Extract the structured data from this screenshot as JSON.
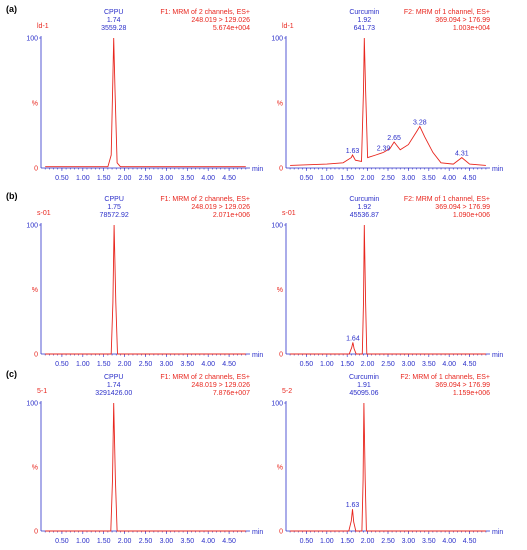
{
  "colors": {
    "trace": "#e8261e",
    "axis": "#2b2fc9",
    "header": "#e8261e",
    "panel_label": "#000000"
  },
  "axis_common": {
    "x_ticks": [
      "0.50",
      "1.00",
      "1.50",
      "2.00",
      "2.50",
      "3.00",
      "3.50",
      "4.00",
      "4.50"
    ],
    "x_unit": "min",
    "y_ticks": [
      "0",
      "%",
      "100"
    ]
  },
  "chart_data": [
    {
      "type": "line",
      "panel": "(a)",
      "sample": "ld-1",
      "compound": "CPPU",
      "rt": "1.74",
      "area": "3559.28",
      "function": "F1: MRM of 2 channels, ES+",
      "transition": "248.019 > 129.026",
      "intensity": "5.674e+004",
      "xlim": [
        0,
        5
      ],
      "ylim": [
        0,
        100
      ],
      "x": [
        0.1,
        1.6,
        1.68,
        1.72,
        1.74,
        1.77,
        1.82,
        1.9,
        4.9
      ],
      "y": [
        1,
        1,
        10,
        70,
        100,
        60,
        4,
        1,
        1
      ],
      "peak_labels": []
    },
    {
      "type": "line",
      "panel": "(a)",
      "sample": "ld-1",
      "compound": "Curcumin",
      "rt": "1.92",
      "area": "641.73",
      "function": "F2: MRM of 1 channel, ES+",
      "transition": "369.094 > 176.99",
      "intensity": "1.003e+004",
      "xlim": [
        0,
        5
      ],
      "ylim": [
        0,
        100
      ],
      "x": [
        0.1,
        1.0,
        1.4,
        1.6,
        1.63,
        1.7,
        1.85,
        1.9,
        1.92,
        1.95,
        2.0,
        2.2,
        2.39,
        2.55,
        2.65,
        2.8,
        3.0,
        3.2,
        3.28,
        3.4,
        3.6,
        3.8,
        4.1,
        4.31,
        4.5,
        4.9
      ],
      "y": [
        2,
        3,
        4,
        8,
        10,
        6,
        5,
        60,
        100,
        60,
        8,
        10,
        12,
        15,
        20,
        14,
        18,
        28,
        32,
        24,
        12,
        4,
        3,
        8,
        3,
        2
      ],
      "peak_labels": [
        {
          "x": 1.63,
          "y": 10,
          "label": "1.63"
        },
        {
          "x": 2.39,
          "y": 12,
          "label": "2.39"
        },
        {
          "x": 2.65,
          "y": 20,
          "label": "2.65"
        },
        {
          "x": 3.28,
          "y": 32,
          "label": "3.28"
        },
        {
          "x": 4.31,
          "y": 8,
          "label": "4.31"
        }
      ]
    },
    {
      "type": "line",
      "panel": "(b)",
      "sample": "s-01",
      "compound": "CPPU",
      "rt": "1.75",
      "area": "78572.92",
      "function": "F1: MRM of 2 channels, ES+",
      "transition": "248.019 > 129.026",
      "intensity": "2.071e+006",
      "xlim": [
        0,
        5
      ],
      "ylim": [
        0,
        100
      ],
      "x": [
        0.1,
        1.68,
        1.72,
        1.75,
        1.79,
        1.83,
        4.9
      ],
      "y": [
        0,
        0,
        40,
        100,
        40,
        0,
        0
      ],
      "peak_labels": []
    },
    {
      "type": "line",
      "panel": "(b)",
      "sample": "s-01",
      "compound": "Curcumin",
      "rt": "1.92",
      "area": "45536.87",
      "function": "F2: MRM of 1 channel, ES+",
      "transition": "369.094 > 176.99",
      "intensity": "1.090e+006",
      "xlim": [
        0,
        5
      ],
      "ylim": [
        0,
        100
      ],
      "x": [
        0.1,
        1.55,
        1.61,
        1.64,
        1.67,
        1.72,
        1.87,
        1.9,
        1.92,
        1.95,
        1.98,
        4.9
      ],
      "y": [
        0,
        0,
        5,
        9,
        4,
        0,
        0,
        40,
        100,
        40,
        0,
        0
      ],
      "peak_labels": [
        {
          "x": 1.64,
          "y": 9,
          "label": "1.64"
        }
      ]
    },
    {
      "type": "line",
      "panel": "(c)",
      "sample": "5-1",
      "compound": "CPPU",
      "rt": "1.74",
      "area": "3291426.00",
      "function": "F1: MRM of 2 channels, ES+",
      "transition": "248.019 > 129.026",
      "intensity": "7.876e+007",
      "xlim": [
        0,
        5
      ],
      "ylim": [
        0,
        100
      ],
      "x": [
        0.1,
        1.67,
        1.71,
        1.74,
        1.78,
        1.82,
        4.9
      ],
      "y": [
        0,
        0,
        40,
        100,
        40,
        0,
        0
      ],
      "peak_labels": []
    },
    {
      "type": "line",
      "panel": "(c)",
      "sample": "5-2",
      "compound": "Curcumin",
      "rt": "1.91",
      "area": "45095.06",
      "function": "F2: MRM of 1 channels, ES+",
      "transition": "369.094 > 176.99",
      "intensity": "1.159e+006",
      "xlim": [
        0,
        5
      ],
      "ylim": [
        0,
        100
      ],
      "x": [
        0.1,
        1.54,
        1.6,
        1.63,
        1.66,
        1.71,
        1.86,
        1.89,
        1.91,
        1.94,
        1.97,
        4.9
      ],
      "y": [
        0,
        0,
        8,
        17,
        7,
        0,
        0,
        40,
        100,
        40,
        0,
        0
      ],
      "peak_labels": [
        {
          "x": 1.63,
          "y": 17,
          "label": "1.63"
        }
      ]
    }
  ]
}
